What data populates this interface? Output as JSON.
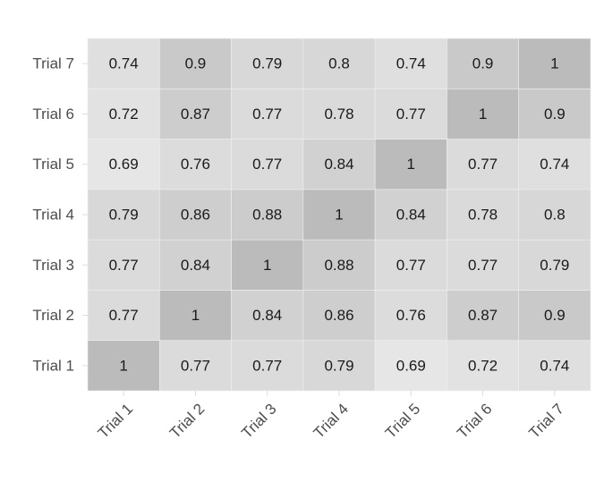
{
  "chart_data": {
    "type": "heatmap",
    "x": [
      "Trial 1",
      "Trial 2",
      "Trial 3",
      "Trial 4",
      "Trial 5",
      "Trial 6",
      "Trial 7"
    ],
    "y": [
      "Trial 1",
      "Trial 2",
      "Trial 3",
      "Trial 4",
      "Trial 5",
      "Trial 6",
      "Trial 7"
    ],
    "values": [
      [
        1,
        0.77,
        0.77,
        0.79,
        0.69,
        0.72,
        0.74
      ],
      [
        0.77,
        1,
        0.84,
        0.86,
        0.76,
        0.87,
        0.9
      ],
      [
        0.77,
        0.84,
        1,
        0.88,
        0.77,
        0.77,
        0.79
      ],
      [
        0.79,
        0.86,
        0.88,
        1,
        0.84,
        0.78,
        0.8
      ],
      [
        0.69,
        0.76,
        0.77,
        0.84,
        1,
        0.77,
        0.74
      ],
      [
        0.72,
        0.87,
        0.77,
        0.78,
        0.77,
        1,
        0.9
      ],
      [
        0.74,
        0.9,
        0.79,
        0.8,
        0.74,
        0.9,
        1
      ]
    ],
    "color_scale": [
      "#e6e6e6",
      "#bbbbbb"
    ]
  }
}
